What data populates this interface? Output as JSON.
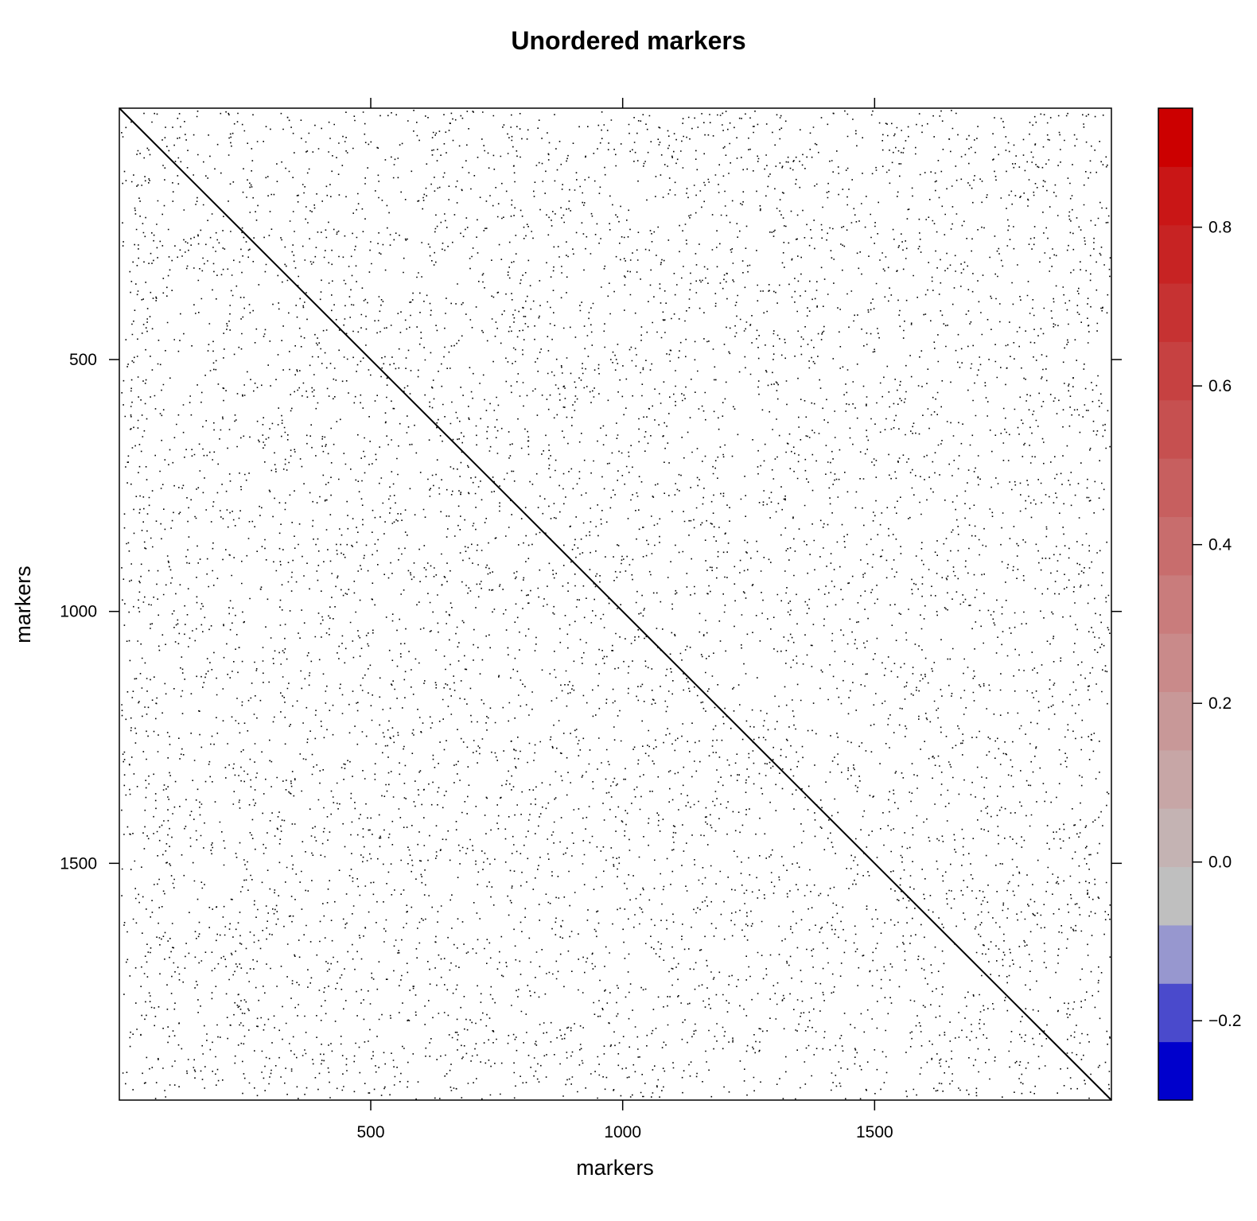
{
  "chart_data": {
    "type": "heatmap",
    "title": "Unordered markers",
    "xlabel": "markers",
    "ylabel": "markers",
    "xlim": [
      1,
      1970
    ],
    "ylim": [
      1,
      1970
    ],
    "x_ticks": [
      500,
      1000,
      1500
    ],
    "y_ticks": [
      500,
      1000,
      1500
    ],
    "x_tick_labels": [
      "500",
      "1000",
      "1500"
    ],
    "y_tick_labels": [
      "500",
      "1000",
      "1500"
    ],
    "y_direction": "top-to-bottom",
    "diagonal_value": 1,
    "background_value": 0,
    "colorbar": {
      "position": "right",
      "range": [
        -0.3,
        0.95
      ],
      "tick_values": [
        -0.2,
        0.0,
        0.2,
        0.4,
        0.6,
        0.8
      ],
      "tick_labels": [
        "−0.2",
        "0.0",
        "0.2",
        "0.4",
        "0.6",
        "0.8"
      ],
      "colors": [
        "#0000cc",
        "#4a4acc",
        "#9797cf",
        "#bfbfbf",
        "#c4b3b3",
        "#c7a6a6",
        "#c89898",
        "#c98a8a",
        "#c97c7c",
        "#c86d6d",
        "#c75f5f",
        "#c65050",
        "#c64141",
        "#c63232",
        "#c72323",
        "#c91616",
        "#cc0000"
      ]
    }
  }
}
